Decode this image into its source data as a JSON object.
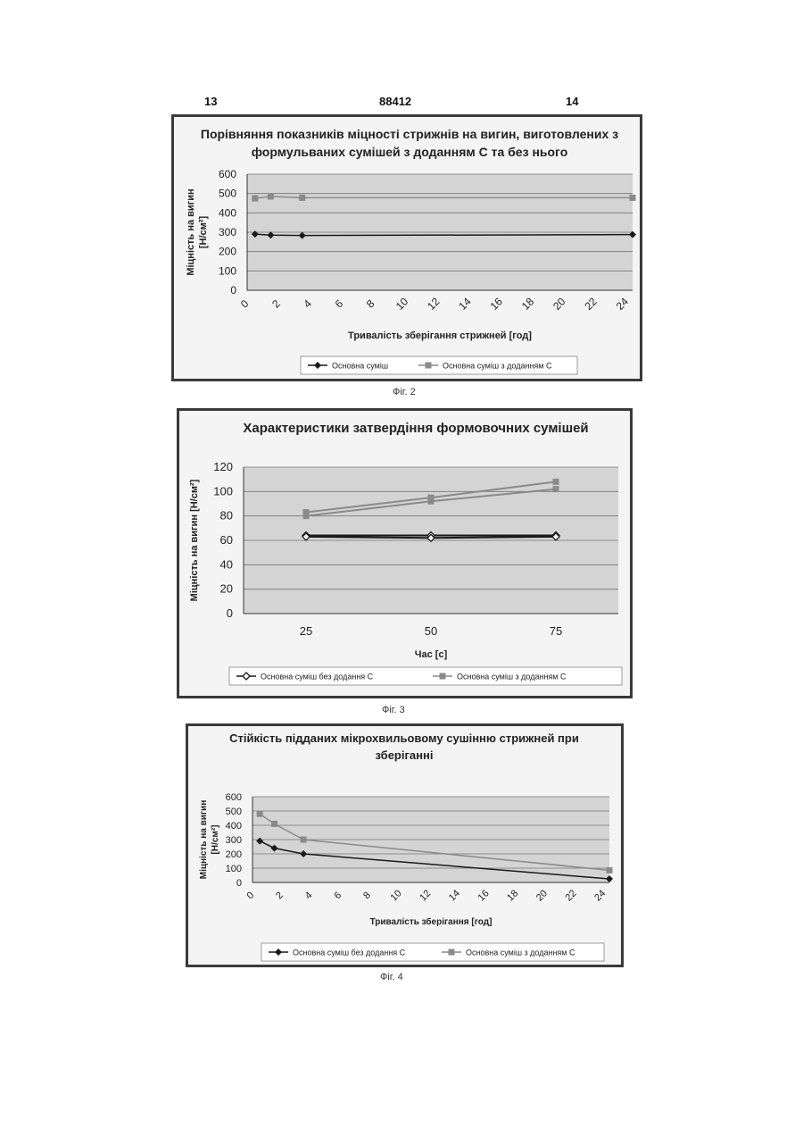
{
  "page_numbers": {
    "left": "13",
    "center": "88412",
    "right": "14"
  },
  "chart_data": [
    {
      "type": "line",
      "title_lines": [
        "Порівняння показників міцності стрижнів на вигин, виготовлених з",
        "формульваних сумішей  з доданням С та без нього"
      ],
      "ylabel_lines": [
        "Міцність на вигин",
        "[Н/см²]"
      ],
      "xlabel": "Тривалість зберігання стрижней [год]",
      "x_ticks": [
        "0",
        "2",
        "4",
        "6",
        "8",
        "10",
        "12",
        "14",
        "16",
        "18",
        "20",
        "22",
        "24"
      ],
      "y_ticks": [
        "0",
        "100",
        "200",
        "300",
        "400",
        "500",
        "600"
      ],
      "xlim": [
        0,
        24.5
      ],
      "ylim": [
        0,
        600
      ],
      "grid": "horizontal",
      "legend": "bottom",
      "series": [
        {
          "name": "Основна суміш",
          "marker": "diamond",
          "color": "#1a1a1a",
          "x": [
            0.5,
            1.5,
            3.5,
            24.5
          ],
          "y": [
            290,
            285,
            283,
            288
          ]
        },
        {
          "name": "Основна суміш з доданням С",
          "marker": "square",
          "color": "#8a8a8a",
          "x": [
            0.5,
            1.5,
            3.5,
            24.5
          ],
          "y": [
            475,
            485,
            478,
            478
          ]
        }
      ],
      "caption": "Фіг. 2"
    },
    {
      "type": "line",
      "title_lines": [
        "Характеристики затвердіння формовочних сумішей"
      ],
      "ylabel_lines": [
        "Міцність на вигин [Н/см²]"
      ],
      "xlabel": "Час [с]",
      "categories": [
        "25",
        "50",
        "75"
      ],
      "y_ticks": [
        "0",
        "20",
        "40",
        "60",
        "80",
        "100",
        "120"
      ],
      "ylim": [
        0,
        120
      ],
      "grid": "horizontal",
      "legend": "bottom",
      "series": [
        {
          "name": "Основна суміш без додання С",
          "marker": "diamond-open",
          "color": "#1a1a1a",
          "values": [
            64,
            64,
            64
          ]
        },
        {
          "name": "",
          "marker": "diamond-open",
          "color": "#1a1a1a",
          "values": [
            63,
            62,
            63
          ]
        },
        {
          "name": "Основна суміш з доданням С",
          "marker": "square",
          "color": "#8a8a8a",
          "values": [
            83,
            95,
            108
          ]
        },
        {
          "name": "",
          "marker": "square",
          "color": "#8a8a8a",
          "values": [
            80,
            92,
            102
          ]
        }
      ],
      "caption": "Фіг. 3"
    },
    {
      "type": "line",
      "title_lines": [
        "Стійкість підданих мікрохвильовому сушінню стрижней при",
        "зберіганні"
      ],
      "ylabel_lines": [
        "Міцність на вигин",
        "[Н/см²]"
      ],
      "xlabel": "Тривалість зберігання [год]",
      "x_ticks": [
        "0",
        "2",
        "4",
        "6",
        "8",
        "10",
        "12",
        "14",
        "16",
        "18",
        "20",
        "22",
        "24"
      ],
      "y_ticks": [
        "0",
        "100",
        "200",
        "300",
        "400",
        "500",
        "600"
      ],
      "xlim": [
        0,
        24.5
      ],
      "ylim": [
        0,
        600
      ],
      "grid": "horizontal",
      "legend": "bottom",
      "series": [
        {
          "name": "Основна суміш без додання С",
          "marker": "diamond",
          "color": "#1a1a1a",
          "x": [
            0.5,
            1.5,
            3.5,
            24.5
          ],
          "y": [
            290,
            240,
            200,
            25
          ]
        },
        {
          "name": "Основна суміш з доданням С",
          "marker": "square",
          "color": "#8a8a8a",
          "x": [
            0.5,
            1.5,
            3.5,
            24.5
          ],
          "y": [
            480,
            410,
            300,
            85
          ]
        }
      ],
      "caption": "Фіг. 4"
    }
  ]
}
